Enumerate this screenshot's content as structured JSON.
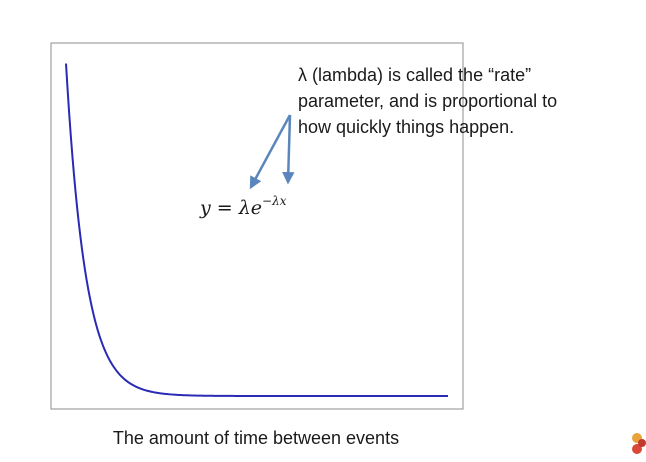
{
  "chart_data": {
    "type": "line",
    "title": "",
    "xlabel": "The amount of time between events",
    "ylabel": "",
    "grid": false,
    "legend": "none",
    "axis_ticks": false,
    "xlim": [
      0,
      10
    ],
    "ylim": [
      0,
      2
    ],
    "series": [
      {
        "function": "exponential decay",
        "lambda": 1.95,
        "color": "#2a2ab4",
        "x": [
          0,
          0.25,
          0.5,
          0.75,
          1,
          1.25,
          1.5,
          1.75,
          2,
          2.5,
          3,
          3.5,
          4,
          5,
          6,
          7,
          8,
          10
        ],
        "y": [
          1.95,
          1.2,
          0.73,
          0.45,
          0.277,
          0.17,
          0.105,
          0.064,
          0.039,
          0.015,
          0.0056,
          0.0021,
          0.0008,
          0.0001,
          0,
          0,
          0,
          0
        ]
      }
    ],
    "annotations": {
      "formula": {
        "lhs": "y",
        "eq": " = ",
        "coef": "λe",
        "exponent": "−λx"
      },
      "note_lines": [
        "λ (lambda) is called the “rate”",
        "parameter, and is proportional to",
        "how quickly things happen."
      ],
      "arrow_color": "#5b86bd"
    }
  }
}
